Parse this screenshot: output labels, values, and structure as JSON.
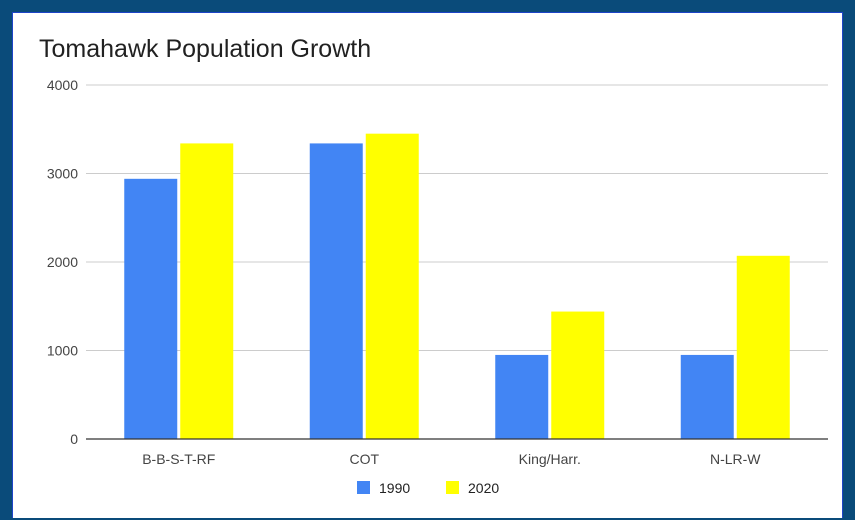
{
  "chart_data": {
    "type": "bar",
    "title": "Tomahawk Population Growth",
    "xlabel": "",
    "ylabel": "",
    "categories": [
      "B-B-S-T-RF",
      "COT",
      "King/Harr.",
      "N-LR-W"
    ],
    "series": [
      {
        "name": "1990",
        "values": [
          2940,
          3340,
          950,
          950
        ],
        "color": "#4285f4"
      },
      {
        "name": "2020",
        "values": [
          3340,
          3450,
          1440,
          2070
        ],
        "color": "#ffff00"
      }
    ],
    "ylim": [
      0,
      4000
    ],
    "yticks": [
      "0",
      "1000",
      "2000",
      "3000",
      "4000"
    ],
    "grid": true,
    "legend_position": "bottom"
  }
}
